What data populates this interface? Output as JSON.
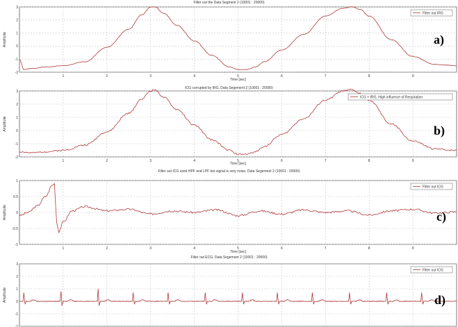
{
  "colors": {
    "trace": "#b03a3a",
    "axis": "#5a5a5a",
    "grid": "#c4c4c4",
    "legend_border": "#7a7a7a",
    "background": "#ffffff"
  },
  "panels": [
    {
      "label": "a)",
      "title": "Filter out the Data Segment 2 (10001 : 20000)",
      "ylabel": "Amplitude",
      "xlabel": "Time [sec]",
      "legend": "Filter out IRG",
      "chart_data": {
        "type": "line",
        "title": "Filter out the Data Segment 2 (10001 : 20000)",
        "xlabel": "Time [sec]",
        "ylabel": "Amplitude",
        "xlim": [
          0,
          10
        ],
        "ylim": [
          -2,
          3
        ],
        "xticks": [
          "1",
          "2",
          "3",
          "4",
          "5",
          "6",
          "7",
          "8",
          "9"
        ],
        "yticks": [
          "-2",
          "-1",
          "0",
          "1",
          "2",
          "3"
        ],
        "grid": true,
        "legend_position": "top-right",
        "series": [
          {
            "name": "Filter out IRG",
            "x": [
              0,
              0.1,
              0.3,
              0.6,
              1.0,
              1.5,
              2.0,
              2.5,
              2.8,
              3.0,
              3.1,
              3.3,
              3.6,
              4.0,
              4.4,
              4.8,
              5.0,
              5.2,
              5.4,
              5.6,
              6.0,
              6.5,
              7.0,
              7.4,
              7.6,
              7.8,
              8.0,
              8.5,
              9.0,
              9.5,
              10.0
            ],
            "y": [
              -1.0,
              -1.8,
              -1.7,
              -1.6,
              -1.5,
              -1.2,
              -0.1,
              1.3,
              2.4,
              3.0,
              3.0,
              2.5,
              1.6,
              0.4,
              -0.7,
              -1.6,
              -1.8,
              -1.8,
              -1.6,
              -1.2,
              -0.3,
              0.9,
              2.3,
              2.9,
              3.0,
              2.8,
              2.3,
              0.5,
              -0.8,
              -1.4,
              -1.5
            ]
          }
        ]
      }
    },
    {
      "label": "b)",
      "title": "ICG corrupted by IRG, Data Segement 2 (10001 : 20000)",
      "ylabel": "Amplitude",
      "xlabel": "Time [sec]",
      "legend": "ICG + IRG, High influence of Respiration",
      "chart_data": {
        "type": "line",
        "title": "ICG corrupted by IRG, Data Segement 2 (10001 : 20000)",
        "xlabel": "Time [sec]",
        "ylabel": "Amplitude",
        "xlim": [
          0,
          10
        ],
        "ylim": [
          -2,
          3
        ],
        "xticks": [
          "1",
          "2",
          "3",
          "4",
          "5",
          "6",
          "7",
          "8",
          "9"
        ],
        "yticks": [
          "-2",
          "-1",
          "0",
          "1",
          "2",
          "3"
        ],
        "grid": true,
        "legend_position": "top-right",
        "series": [
          {
            "name": "ICG + IRG, High influence of Respiration",
            "x": [
              0,
              0.3,
              0.6,
              1.0,
              1.5,
              2.0,
              2.5,
              2.8,
              3.0,
              3.1,
              3.3,
              3.6,
              4.0,
              4.4,
              4.8,
              5.0,
              5.2,
              5.4,
              5.6,
              6.0,
              6.5,
              7.0,
              7.4,
              7.6,
              7.8,
              8.0,
              8.5,
              9.0,
              9.5,
              10.0
            ],
            "y": [
              -1.6,
              -1.7,
              -1.6,
              -1.5,
              -1.1,
              -0.1,
              1.3,
              2.4,
              3.0,
              3.1,
              2.5,
              1.6,
              0.4,
              -0.7,
              -1.5,
              -1.8,
              -1.8,
              -1.6,
              -1.2,
              -0.3,
              0.9,
              2.3,
              3.0,
              3.1,
              2.8,
              2.3,
              0.5,
              -0.8,
              -1.4,
              -1.5
            ]
          }
        ]
      }
    },
    {
      "label": "c)",
      "title": "Filter out ICG used HPF and LPF but signal is very noise, Data Segement 2 (10001 : 20000)",
      "ylabel": "Amplitude",
      "xlabel": "Time [sec]",
      "legend": "Filter out ICG",
      "chart_data": {
        "type": "line",
        "title": "Filter out ICG used HPF and LPF but signal is very noise, Data Segement 2 (10001 : 20000)",
        "xlabel": "Time [sec]",
        "ylabel": "Amplitude",
        "xlim": [
          0,
          10
        ],
        "ylim": [
          -1,
          1
        ],
        "xticks": [
          "1",
          "2",
          "3",
          "4",
          "5",
          "6",
          "7",
          "8",
          "9"
        ],
        "yticks": [
          "-1",
          "-0.5",
          "0",
          "0.5",
          "1"
        ],
        "grid": true,
        "legend_position": "top-right",
        "series": [
          {
            "name": "Filter out ICG",
            "x": [
              0,
              0.2,
              0.4,
              0.6,
              0.75,
              0.8,
              0.85,
              0.9,
              1.0,
              1.2,
              1.5,
              2.0,
              2.5,
              3.0,
              3.5,
              4.0,
              4.5,
              5.0,
              5.5,
              6.0,
              6.5,
              7.0,
              7.5,
              8.0,
              8.5,
              9.0,
              9.5,
              10.0
            ],
            "y": [
              -0.1,
              0,
              0.2,
              0.5,
              0.85,
              0.9,
              -0.3,
              -0.6,
              -0.3,
              0.05,
              0.18,
              0.05,
              0.1,
              -0.05,
              0.05,
              0,
              0.08,
              -0.1,
              0.05,
              -0.05,
              0.08,
              0,
              0.05,
              -0.08,
              0.05,
              0.1,
              -0.02,
              0.02
            ]
          }
        ]
      }
    },
    {
      "label": "d)",
      "title": "Filter out ECG, Data Segement 2 (10001 : 20000)",
      "ylabel": "Amplitude",
      "xlabel": "",
      "legend": "Filter out ICG",
      "chart_data": {
        "type": "line",
        "title": "Filter out ECG, Data Segement 2 (10001 : 20000)",
        "xlabel": "",
        "ylabel": "Amplitude",
        "xlim": [
          0,
          10
        ],
        "ylim": [
          -2,
          3
        ],
        "xticks": [],
        "yticks": [
          "-2",
          "-1",
          "0",
          "1",
          "2",
          "3"
        ],
        "grid": true,
        "legend_position": "top-right",
        "series": [
          {
            "name": "Filter out ICG",
            "baseline": 0,
            "peak_x": [
              0.1,
              0.95,
              1.8,
              2.6,
              3.4,
              4.25,
              5.1,
              5.9,
              6.7,
              7.55,
              8.4,
              9.2
            ],
            "peak_y": [
              0.7,
              0.8,
              1.0,
              0.7,
              0.7,
              0.7,
              0.7,
              0.7,
              0.7,
              0.7,
              0.7,
              0.7
            ]
          }
        ]
      }
    }
  ]
}
